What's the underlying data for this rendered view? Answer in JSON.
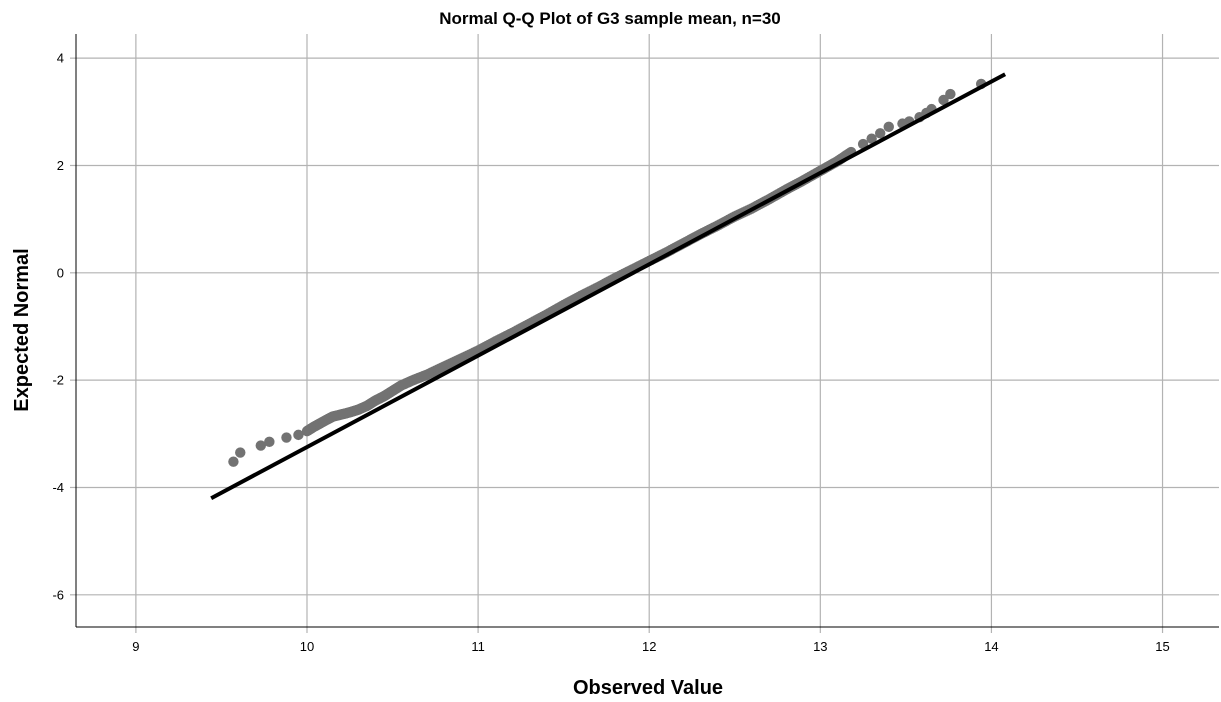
{
  "chart_data": {
    "type": "scatter",
    "title": "Normal Q-Q Plot of G3 sample mean, n=30",
    "xlabel": "Observed Value",
    "ylabel": "Expected Normal",
    "xlim": [
      8.65,
      15.33
    ],
    "ylim": [
      -6.6,
      4.45
    ],
    "x_ticks": [
      9,
      10,
      11,
      12,
      13,
      14,
      15
    ],
    "y_ticks": [
      -6,
      -4,
      -2,
      0,
      2,
      4
    ],
    "grid": true,
    "colors": {
      "points": "#727272",
      "line": "#000000",
      "grid": "#b3b3b3"
    },
    "reference_line": {
      "x": [
        9.44,
        14.08
      ],
      "y": [
        -4.2,
        3.7
      ]
    },
    "series": [
      {
        "x": [
          9.57,
          9.61,
          9.73,
          9.78,
          9.88,
          9.95,
          10.0,
          10.04,
          10.08,
          10.12,
          10.15,
          10.2,
          10.25,
          10.3,
          10.35,
          10.4,
          10.45,
          10.5,
          10.55,
          10.62,
          10.7,
          10.8,
          10.9,
          11.0,
          11.1,
          11.2,
          11.3,
          11.4,
          11.5,
          11.6,
          11.7,
          11.8,
          11.9,
          12.0,
          12.1,
          12.2,
          12.3,
          12.4,
          12.5,
          12.6,
          12.7,
          12.8,
          12.9,
          13.0,
          13.1,
          13.18,
          13.25,
          13.3,
          13.35,
          13.4,
          13.48,
          13.52,
          13.58,
          13.62,
          13.65,
          13.72,
          13.76,
          13.94
        ],
        "y": [
          -3.52,
          -3.35,
          -3.22,
          -3.15,
          -3.07,
          -3.02,
          -2.95,
          -2.87,
          -2.8,
          -2.73,
          -2.68,
          -2.64,
          -2.6,
          -2.55,
          -2.48,
          -2.38,
          -2.3,
          -2.2,
          -2.1,
          -2.0,
          -1.9,
          -1.75,
          -1.6,
          -1.45,
          -1.28,
          -1.12,
          -0.95,
          -0.78,
          -0.6,
          -0.43,
          -0.27,
          -0.1,
          0.06,
          0.22,
          0.38,
          0.55,
          0.72,
          0.88,
          1.05,
          1.2,
          1.37,
          1.55,
          1.72,
          1.9,
          2.08,
          2.25,
          2.4,
          2.5,
          2.6,
          2.72,
          2.78,
          2.82,
          2.9,
          2.98,
          3.05,
          3.22,
          3.33,
          3.52
        ]
      }
    ]
  }
}
